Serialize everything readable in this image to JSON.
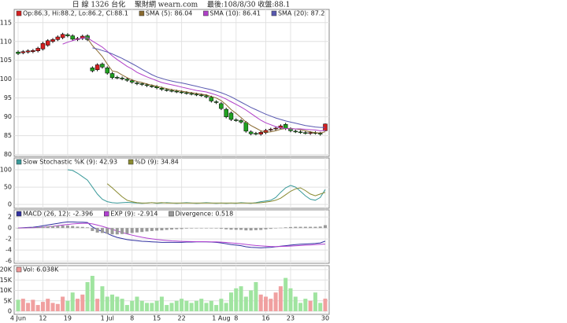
{
  "chart_data": [
    {
      "type": "candlestick",
      "title": "日 線 1326 台化　 聚財網 wearn.com　 最後:108/8/30 收盤:88.1",
      "name": "Op:86.3, Hi:88.2, Lo:86.2, Cl:88.1",
      "up_color": "#d42020",
      "down_color": "#20a020",
      "flat_color": "#000000",
      "ylim": [
        79.5,
        118.5
      ],
      "yticks": [
        80,
        85,
        90,
        95,
        100,
        105,
        110,
        115
      ],
      "grid": true,
      "open": [
        107.2,
        107.0,
        107.2,
        107.3,
        107.5,
        108.0,
        109.0,
        110.0,
        110.5,
        111.0,
        111.8,
        111.5,
        110.5,
        110.8,
        111.5,
        103.0,
        102.5,
        104.0,
        103.0,
        101.5,
        100.5,
        100.3,
        100.0,
        99.6,
        99.0,
        98.8,
        98.5,
        98.2,
        98.0,
        97.6,
        97.2,
        97.0,
        96.8,
        96.6,
        96.4,
        96.2,
        96.0,
        95.8,
        95.6,
        95.2,
        94.0,
        93.5,
        92.0,
        91.0,
        89.2,
        89.0,
        88.5,
        86.0,
        85.6,
        85.4,
        85.8,
        86.5,
        86.8,
        87.0,
        88.0,
        86.8,
        86.2,
        86.0,
        85.8,
        85.6,
        85.8,
        85.6,
        86.3
      ],
      "high": [
        107.6,
        107.7,
        107.9,
        108.0,
        108.6,
        109.9,
        110.6,
        110.9,
        111.6,
        112.3,
        112.2,
        111.9,
        111.2,
        111.8,
        111.9,
        103.4,
        104.2,
        104.4,
        103.4,
        101.9,
        100.9,
        100.7,
        100.4,
        100.0,
        99.4,
        99.2,
        98.9,
        98.6,
        98.4,
        98.0,
        97.6,
        97.4,
        97.2,
        97.0,
        96.8,
        96.6,
        96.4,
        96.2,
        96.0,
        95.6,
        94.4,
        93.9,
        92.4,
        91.4,
        89.6,
        89.4,
        88.9,
        86.4,
        86.0,
        86.3,
        86.8,
        87.1,
        87.4,
        88.0,
        88.4,
        87.2,
        86.6,
        86.4,
        86.2,
        86.2,
        86.2,
        86.0,
        88.2
      ],
      "low": [
        106.4,
        106.6,
        106.8,
        106.9,
        107.1,
        107.6,
        108.6,
        109.6,
        110.1,
        110.6,
        111.1,
        110.2,
        110.1,
        110.4,
        110.1,
        101.8,
        102.1,
        102.8,
        101.2,
        100.0,
        100.0,
        99.7,
        99.3,
        98.8,
        98.4,
        98.2,
        97.9,
        97.7,
        97.3,
        96.9,
        96.7,
        96.5,
        96.3,
        96.1,
        95.9,
        95.7,
        95.5,
        95.3,
        94.9,
        93.8,
        93.4,
        91.8,
        89.6,
        88.9,
        88.7,
        88.2,
        85.8,
        85.1,
        85.1,
        85.0,
        85.4,
        86.1,
        86.4,
        86.6,
        86.5,
        85.9,
        85.7,
        85.5,
        85.3,
        85.2,
        85.3,
        85.0,
        86.2
      ],
      "close": [
        106.8,
        107.3,
        107.5,
        107.6,
        108.2,
        109.5,
        110.2,
        110.5,
        111.2,
        111.9,
        111.5,
        110.6,
        110.8,
        111.4,
        110.5,
        102.2,
        103.8,
        103.2,
        101.6,
        100.4,
        100.4,
        100.1,
        99.7,
        99.2,
        98.8,
        98.6,
        98.3,
        98.1,
        97.7,
        97.3,
        97.1,
        96.9,
        96.7,
        96.5,
        96.3,
        96.1,
        95.9,
        95.7,
        95.3,
        94.2,
        93.8,
        92.2,
        90.0,
        89.3,
        89.1,
        88.6,
        86.2,
        85.5,
        85.5,
        85.9,
        86.4,
        86.7,
        87.0,
        87.6,
        86.9,
        86.3,
        86.1,
        85.9,
        85.7,
        85.8,
        85.7,
        85.4,
        88.1
      ],
      "series": [
        {
          "name": "SMA (5): 86.04",
          "color": "#8a6a30",
          "values": [
            null,
            null,
            null,
            null,
            null,
            null,
            null,
            null,
            null,
            null,
            null,
            null,
            null,
            null,
            110.8,
            108.9,
            107.5,
            106,
            104,
            102.2,
            101.9,
            101.1,
            100.4,
            99.8,
            99.4,
            99.1,
            98.7,
            98.4,
            98.1,
            97.8,
            97.5,
            97.2,
            97.0,
            96.8,
            96.6,
            96.4,
            96.2,
            96.0,
            95.8,
            95.4,
            95.0,
            94.3,
            93.2,
            91.9,
            90.9,
            89.8,
            88.6,
            87.7,
            87.0,
            86.3,
            85.9,
            86.0,
            86.3,
            86.7,
            86.9,
            86.9,
            86.8,
            86.6,
            86.3,
            86.0,
            85.8,
            85.7,
            86.04
          ]
        },
        {
          "name": "SMA (10): 86.41",
          "color": "#b040c8",
          "values": [
            null,
            null,
            null,
            null,
            null,
            null,
            null,
            null,
            null,
            109.3,
            109.8,
            110.2,
            110.6,
            110.9,
            111.0,
            110.1,
            109.3,
            108.5,
            107.4,
            106.2,
            105.2,
            104.3,
            103.4,
            102.7,
            101.8,
            101.2,
            100.6,
            100.1,
            99.6,
            99.1,
            98.8,
            98.5,
            98.2,
            97.9,
            97.6,
            97.3,
            97.0,
            96.8,
            96.6,
            96.2,
            95.8,
            95.3,
            94.7,
            94.0,
            93.3,
            92.6,
            91.8,
            90.9,
            90.0,
            89.1,
            88.4,
            87.9,
            87.4,
            87.1,
            86.9,
            86.8,
            86.8,
            86.8,
            86.7,
            86.6,
            86.5,
            86.3,
            86.41
          ]
        },
        {
          "name": "SMA (20): 87.2",
          "color": "#5858b0",
          "values": [
            null,
            null,
            null,
            null,
            null,
            null,
            null,
            null,
            null,
            null,
            null,
            null,
            null,
            null,
            null,
            108.3,
            108.0,
            107.6,
            107.2,
            106.7,
            106.1,
            105.5,
            104.8,
            104.1,
            103.4,
            102.6,
            101.9,
            101.2,
            100.6,
            100.2,
            99.8,
            99.5,
            99.2,
            99.0,
            98.7,
            98.4,
            98.1,
            97.8,
            97.5,
            97.2,
            96.8,
            96.4,
            95.9,
            95.3,
            94.6,
            93.9,
            93.2,
            92.5,
            91.9,
            91.3,
            90.7,
            90.2,
            89.7,
            89.3,
            88.9,
            88.6,
            88.3,
            88.0,
            87.7,
            87.5,
            87.3,
            87.2,
            87.2
          ]
        }
      ]
    },
    {
      "type": "line",
      "ylim": [
        -11,
        134
      ],
      "yticks": [
        0,
        50,
        100
      ],
      "grid": true,
      "series": [
        {
          "name": "Slow Stochastic %K (9): 42.93",
          "color": "#3a9a9a",
          "values": [
            null,
            null,
            null,
            null,
            null,
            null,
            null,
            null,
            null,
            null,
            100,
            98,
            90,
            80,
            70,
            50,
            30,
            15,
            8,
            5,
            4,
            5,
            6,
            5,
            4,
            3,
            4,
            5,
            3,
            4,
            5,
            4,
            3,
            4,
            5,
            4,
            3,
            4,
            5,
            4,
            3,
            4,
            3,
            4,
            3,
            5,
            4,
            3,
            5,
            8,
            10,
            12,
            20,
            35,
            48,
            55,
            50,
            38,
            25,
            15,
            12,
            20,
            42.93
          ]
        },
        {
          "name": "%D (9): 34.84",
          "color": "#8a8a30",
          "values": [
            null,
            null,
            null,
            null,
            null,
            null,
            null,
            null,
            null,
            null,
            null,
            null,
            null,
            null,
            null,
            null,
            null,
            null,
            60,
            48,
            35,
            22,
            12,
            8,
            5,
            4,
            4,
            5,
            4,
            5,
            4,
            4,
            4,
            4,
            4,
            4,
            4,
            4,
            4,
            4,
            4,
            4,
            4,
            4,
            4,
            4,
            4,
            4,
            4,
            5,
            7,
            9,
            12,
            18,
            28,
            38,
            45,
            48,
            40,
            30,
            25,
            30,
            34.84
          ]
        }
      ]
    },
    {
      "type": "line",
      "ylim": [
        -6.4,
        3.3
      ],
      "yticks": [
        2,
        0,
        -2,
        -4,
        -6
      ],
      "grid": true,
      "series": [
        {
          "name": "MACD (26, 12): -2.396",
          "color": "#3030a0",
          "kind": "line",
          "values": [
            0.0,
            0.05,
            0.1,
            0.15,
            0.25,
            0.4,
            0.55,
            0.7,
            0.85,
            1.0,
            1.1,
            1.1,
            1.05,
            1.05,
            1.0,
            0.2,
            -0.3,
            -0.6,
            -1.0,
            -1.4,
            -1.7,
            -1.9,
            -2.1,
            -2.2,
            -2.3,
            -2.4,
            -2.45,
            -2.5,
            -2.55,
            -2.6,
            -2.6,
            -2.6,
            -2.6,
            -2.6,
            -2.55,
            -2.55,
            -2.5,
            -2.5,
            -2.5,
            -2.55,
            -2.6,
            -2.7,
            -2.85,
            -3.0,
            -3.1,
            -3.2,
            -3.4,
            -3.5,
            -3.55,
            -3.6,
            -3.55,
            -3.5,
            -3.4,
            -3.3,
            -3.2,
            -3.1,
            -3.0,
            -2.95,
            -2.9,
            -2.85,
            -2.8,
            -2.7,
            -2.396
          ]
        },
        {
          "name": "EXP (9): -2.914",
          "color": "#b040d0",
          "kind": "line",
          "values": [
            0.0,
            0.01,
            0.03,
            0.05,
            0.09,
            0.15,
            0.23,
            0.32,
            0.43,
            0.54,
            0.65,
            0.74,
            0.8,
            0.85,
            0.88,
            0.74,
            0.53,
            0.3,
            0.04,
            -0.25,
            -0.54,
            -0.81,
            -1.07,
            -1.3,
            -1.5,
            -1.68,
            -1.83,
            -1.96,
            -2.08,
            -2.18,
            -2.26,
            -2.33,
            -2.38,
            -2.42,
            -2.45,
            -2.47,
            -2.48,
            -2.48,
            -2.49,
            -2.5,
            -2.52,
            -2.56,
            -2.62,
            -2.7,
            -2.78,
            -2.87,
            -2.97,
            -3.07,
            -3.17,
            -3.25,
            -3.31,
            -3.35,
            -3.36,
            -3.35,
            -3.32,
            -3.28,
            -3.22,
            -3.17,
            -3.12,
            -3.07,
            -3.02,
            -2.96,
            -2.914
          ]
        },
        {
          "name": "Divergence: 0.518",
          "color": "#999999",
          "kind": "bar",
          "values": [
            0,
            0.04,
            0.07,
            0.1,
            0.16,
            0.25,
            0.32,
            0.38,
            0.42,
            0.46,
            0.45,
            0.36,
            0.25,
            0.2,
            0.12,
            -0.54,
            -0.83,
            -0.9,
            -1.04,
            -1.15,
            -1.16,
            -1.09,
            -1.03,
            -0.9,
            -0.8,
            -0.72,
            -0.62,
            -0.54,
            -0.47,
            -0.42,
            -0.34,
            -0.27,
            -0.22,
            -0.18,
            -0.1,
            -0.08,
            -0.02,
            -0.02,
            -0.01,
            -0.05,
            -0.08,
            -0.14,
            -0.23,
            -0.3,
            -0.32,
            -0.33,
            -0.43,
            -0.43,
            -0.38,
            -0.35,
            -0.24,
            -0.15,
            -0.04,
            0.05,
            0.12,
            0.18,
            0.22,
            0.22,
            0.22,
            0.22,
            0.22,
            0.26,
            0.518
          ]
        }
      ]
    },
    {
      "type": "bar",
      "ylim": [
        -1500,
        21900
      ],
      "yticks": [
        {
          "value": 20000,
          "label": "20K"
        },
        {
          "value": 15000,
          "label": "15K"
        },
        {
          "value": 10000,
          "label": "10K"
        },
        {
          "value": 5000,
          "label": "5K"
        },
        0
      ],
      "grid": true,
      "name": "Vol: 6.038K",
      "color": "#f09898",
      "up_color": "#f0a0a0",
      "down_color": "#a0e4a0",
      "flat_color": "#a0a0a0",
      "categories": [
        "4 Jun",
        null,
        null,
        null,
        null,
        "12",
        null,
        null,
        null,
        null,
        "19",
        null,
        null,
        null,
        null,
        null,
        null,
        null,
        "1 Jul",
        null,
        null,
        null,
        null,
        "8",
        null,
        null,
        null,
        null,
        "15",
        null,
        null,
        null,
        null,
        "22",
        null,
        null,
        null,
        null,
        null,
        null,
        null,
        "1 Aug",
        null,
        null,
        "8",
        null,
        null,
        null,
        null,
        null,
        "16",
        null,
        null,
        null,
        null,
        "23",
        null,
        null,
        null,
        null,
        null,
        null,
        "30"
      ],
      "values": [
        5500,
        6000,
        4000,
        5500,
        3000,
        4500,
        6000,
        4000,
        3500,
        7000,
        5000,
        9000,
        6000,
        8000,
        14000,
        17000,
        6000,
        12000,
        7000,
        8000,
        7000,
        6000,
        3000,
        5000,
        7000,
        5000,
        4000,
        4000,
        5000,
        7000,
        3000,
        4000,
        5000,
        6000,
        5000,
        4000,
        5000,
        6000,
        4000,
        5000,
        3000,
        6000,
        4000,
        9000,
        11000,
        12000,
        7000,
        10000,
        14000,
        8000,
        7000,
        6000,
        9000,
        12000,
        16000,
        11000,
        7000,
        4000,
        6000,
        5000,
        9000,
        4000,
        6038
      ]
    }
  ]
}
